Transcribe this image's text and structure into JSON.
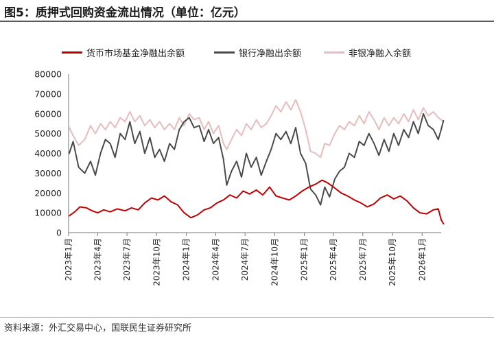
{
  "header": {
    "title": "图5：质押式回购资金流出情况（单位：亿元）"
  },
  "footer": {
    "source": "资料来源：外汇交易中心，国联民生证券研究所"
  },
  "chart_data": {
    "type": "line",
    "title": "",
    "xlabel": "",
    "ylabel": "",
    "ylim": [
      0,
      80000
    ],
    "yticks": [
      0,
      10000,
      20000,
      30000,
      40000,
      50000,
      60000,
      70000,
      80000
    ],
    "x_range": [
      "2023-01",
      "2026-03"
    ],
    "xticks": [
      {
        "date": "2023-01",
        "label": "2023年1月"
      },
      {
        "date": "2023-04",
        "label": "2023年4月"
      },
      {
        "date": "2023-07",
        "label": "2023年7月"
      },
      {
        "date": "2023-10",
        "label": "2023年10月"
      },
      {
        "date": "2024-01",
        "label": "2024年1月"
      },
      {
        "date": "2024-04",
        "label": "2024年4月"
      },
      {
        "date": "2024-07",
        "label": "2024年7月"
      },
      {
        "date": "2024-10",
        "label": "2024年10月"
      },
      {
        "date": "2025-01",
        "label": "2025年1月"
      },
      {
        "date": "2025-04",
        "label": "2025年4月"
      },
      {
        "date": "2025-07",
        "label": "2025年7月"
      },
      {
        "date": "2025-10",
        "label": "2025年10月"
      },
      {
        "date": "2026-01",
        "label": "2026年1月"
      }
    ],
    "grid": false,
    "legend_position": "top",
    "series": [
      {
        "name": "货币市场基金净融出余额",
        "color": "#c00000",
        "points": [
          [
            "2023-01-03",
            8500
          ],
          [
            "2023-01-20",
            10500
          ],
          [
            "2023-02-05",
            13000
          ],
          [
            "2023-02-25",
            12500
          ],
          [
            "2023-03-15",
            11000
          ],
          [
            "2023-04-01",
            10000
          ],
          [
            "2023-04-20",
            11500
          ],
          [
            "2023-05-10",
            10500
          ],
          [
            "2023-06-01",
            12000
          ],
          [
            "2023-06-25",
            11000
          ],
          [
            "2023-07-15",
            12500
          ],
          [
            "2023-08-05",
            11500
          ],
          [
            "2023-08-25",
            15000
          ],
          [
            "2023-09-15",
            17500
          ],
          [
            "2023-10-05",
            16500
          ],
          [
            "2023-10-25",
            18500
          ],
          [
            "2023-11-15",
            15500
          ],
          [
            "2023-12-05",
            14000
          ],
          [
            "2023-12-25",
            10000
          ],
          [
            "2024-01-15",
            7500
          ],
          [
            "2024-02-05",
            9000
          ],
          [
            "2024-02-25",
            11500
          ],
          [
            "2024-03-15",
            12500
          ],
          [
            "2024-04-05",
            15000
          ],
          [
            "2024-04-25",
            16500
          ],
          [
            "2024-05-15",
            19000
          ],
          [
            "2024-06-05",
            17500
          ],
          [
            "2024-06-25",
            21000
          ],
          [
            "2024-07-15",
            19500
          ],
          [
            "2024-08-05",
            21500
          ],
          [
            "2024-08-25",
            19000
          ],
          [
            "2024-09-15",
            23000
          ],
          [
            "2024-10-05",
            18500
          ],
          [
            "2024-10-25",
            17500
          ],
          [
            "2024-11-15",
            16500
          ],
          [
            "2024-12-05",
            18500
          ],
          [
            "2024-12-25",
            21000
          ],
          [
            "2025-01-15",
            23000
          ],
          [
            "2025-02-05",
            24500
          ],
          [
            "2025-02-25",
            26500
          ],
          [
            "2025-03-15",
            25000
          ],
          [
            "2025-04-05",
            22500
          ],
          [
            "2025-04-25",
            20000
          ],
          [
            "2025-05-15",
            18500
          ],
          [
            "2025-06-05",
            16500
          ],
          [
            "2025-06-25",
            15000
          ],
          [
            "2025-07-15",
            13000
          ],
          [
            "2025-08-05",
            14500
          ],
          [
            "2025-08-25",
            17500
          ],
          [
            "2025-09-15",
            19000
          ],
          [
            "2025-10-05",
            17000
          ],
          [
            "2025-10-25",
            18500
          ],
          [
            "2025-11-15",
            16000
          ],
          [
            "2025-12-05",
            12500
          ],
          [
            "2025-12-25",
            10000
          ],
          [
            "2026-01-15",
            9500
          ],
          [
            "2026-02-05",
            11500
          ],
          [
            "2026-02-20",
            12000
          ],
          [
            "2026-03-01",
            6500
          ],
          [
            "2026-03-08",
            4500
          ]
        ]
      },
      {
        "name": "银行净融出余额",
        "color": "#4a4a4a",
        "points": [
          [
            "2023-01-03",
            40000
          ],
          [
            "2023-01-15",
            46000
          ],
          [
            "2023-02-01",
            33000
          ],
          [
            "2023-02-20",
            30000
          ],
          [
            "2023-03-10",
            36000
          ],
          [
            "2023-03-25",
            29000
          ],
          [
            "2023-04-10",
            40000
          ],
          [
            "2023-04-25",
            47000
          ],
          [
            "2023-05-10",
            45000
          ],
          [
            "2023-05-25",
            38000
          ],
          [
            "2023-06-10",
            50000
          ],
          [
            "2023-06-25",
            47000
          ],
          [
            "2023-07-10",
            56000
          ],
          [
            "2023-07-25",
            45000
          ],
          [
            "2023-08-10",
            51000
          ],
          [
            "2023-08-25",
            40000
          ],
          [
            "2023-09-10",
            48000
          ],
          [
            "2023-09-25",
            38000
          ],
          [
            "2023-10-10",
            42000
          ],
          [
            "2023-10-25",
            36000
          ],
          [
            "2023-11-10",
            45000
          ],
          [
            "2023-11-25",
            42000
          ],
          [
            "2023-12-10",
            52000
          ],
          [
            "2023-12-25",
            56000
          ],
          [
            "2024-01-10",
            58000
          ],
          [
            "2024-01-25",
            53000
          ],
          [
            "2024-02-10",
            54000
          ],
          [
            "2024-02-25",
            46000
          ],
          [
            "2024-03-10",
            52000
          ],
          [
            "2024-03-25",
            45000
          ],
          [
            "2024-04-10",
            48000
          ],
          [
            "2024-04-25",
            37000
          ],
          [
            "2024-05-05",
            24000
          ],
          [
            "2024-05-20",
            31000
          ],
          [
            "2024-06-05",
            36000
          ],
          [
            "2024-06-20",
            28000
          ],
          [
            "2024-07-05",
            40000
          ],
          [
            "2024-07-20",
            33000
          ],
          [
            "2024-08-05",
            38000
          ],
          [
            "2024-08-20",
            29000
          ],
          [
            "2024-09-05",
            36000
          ],
          [
            "2024-09-20",
            42000
          ],
          [
            "2024-10-05",
            50000
          ],
          [
            "2024-10-20",
            47000
          ],
          [
            "2024-11-05",
            51000
          ],
          [
            "2024-11-20",
            45000
          ],
          [
            "2024-12-05",
            53000
          ],
          [
            "2024-12-20",
            40000
          ],
          [
            "2025-01-05",
            35000
          ],
          [
            "2025-01-20",
            22000
          ],
          [
            "2025-02-05",
            19000
          ],
          [
            "2025-02-20",
            14000
          ],
          [
            "2025-03-05",
            23000
          ],
          [
            "2025-03-20",
            18000
          ],
          [
            "2025-04-05",
            27000
          ],
          [
            "2025-04-20",
            31000
          ],
          [
            "2025-05-05",
            33000
          ],
          [
            "2025-05-20",
            40000
          ],
          [
            "2025-06-05",
            38000
          ],
          [
            "2025-06-20",
            46000
          ],
          [
            "2025-07-05",
            44000
          ],
          [
            "2025-07-20",
            50000
          ],
          [
            "2025-08-05",
            45000
          ],
          [
            "2025-08-20",
            39000
          ],
          [
            "2025-09-05",
            47000
          ],
          [
            "2025-09-20",
            41000
          ],
          [
            "2025-10-05",
            50000
          ],
          [
            "2025-10-20",
            44000
          ],
          [
            "2025-11-05",
            52000
          ],
          [
            "2025-11-20",
            48000
          ],
          [
            "2025-12-05",
            56000
          ],
          [
            "2025-12-20",
            50000
          ],
          [
            "2026-01-05",
            60000
          ],
          [
            "2026-01-20",
            54000
          ],
          [
            "2026-02-05",
            52000
          ],
          [
            "2026-02-20",
            47000
          ],
          [
            "2026-03-01",
            52000
          ],
          [
            "2026-03-08",
            56500
          ]
        ]
      },
      {
        "name": "非银净融入余额",
        "color": "#e8bcbc",
        "points": [
          [
            "2023-01-03",
            53000
          ],
          [
            "2023-01-15",
            49000
          ],
          [
            "2023-02-01",
            44000
          ],
          [
            "2023-02-20",
            47000
          ],
          [
            "2023-03-10",
            54000
          ],
          [
            "2023-03-25",
            50000
          ],
          [
            "2023-04-10",
            55000
          ],
          [
            "2023-04-25",
            52000
          ],
          [
            "2023-05-10",
            56000
          ],
          [
            "2023-05-25",
            53000
          ],
          [
            "2023-06-10",
            58000
          ],
          [
            "2023-06-25",
            56000
          ],
          [
            "2023-07-10",
            61000
          ],
          [
            "2023-07-25",
            56000
          ],
          [
            "2023-08-10",
            59000
          ],
          [
            "2023-08-25",
            54000
          ],
          [
            "2023-09-10",
            57000
          ],
          [
            "2023-09-25",
            53000
          ],
          [
            "2023-10-10",
            56000
          ],
          [
            "2023-10-25",
            52000
          ],
          [
            "2023-11-10",
            55000
          ],
          [
            "2023-11-25",
            52000
          ],
          [
            "2023-12-10",
            58000
          ],
          [
            "2023-12-25",
            54000
          ],
          [
            "2024-01-10",
            60000
          ],
          [
            "2024-01-25",
            57000
          ],
          [
            "2024-02-10",
            58000
          ],
          [
            "2024-02-25",
            52000
          ],
          [
            "2024-03-10",
            56000
          ],
          [
            "2024-03-25",
            50000
          ],
          [
            "2024-04-10",
            54000
          ],
          [
            "2024-04-25",
            45000
          ],
          [
            "2024-05-05",
            42000
          ],
          [
            "2024-05-20",
            47000
          ],
          [
            "2024-06-05",
            52000
          ],
          [
            "2024-06-20",
            49000
          ],
          [
            "2024-07-05",
            55000
          ],
          [
            "2024-07-20",
            52000
          ],
          [
            "2024-08-05",
            57000
          ],
          [
            "2024-08-20",
            53000
          ],
          [
            "2024-09-05",
            55000
          ],
          [
            "2024-09-20",
            59000
          ],
          [
            "2024-10-05",
            64000
          ],
          [
            "2024-10-20",
            61000
          ],
          [
            "2024-11-05",
            66000
          ],
          [
            "2024-11-20",
            62000
          ],
          [
            "2024-12-05",
            67000
          ],
          [
            "2024-12-20",
            61000
          ],
          [
            "2025-01-05",
            52000
          ],
          [
            "2025-01-20",
            41000
          ],
          [
            "2025-02-05",
            40000
          ],
          [
            "2025-02-20",
            38000
          ],
          [
            "2025-03-05",
            45000
          ],
          [
            "2025-03-20",
            44000
          ],
          [
            "2025-04-05",
            50000
          ],
          [
            "2025-04-20",
            54000
          ],
          [
            "2025-05-05",
            52000
          ],
          [
            "2025-05-20",
            56000
          ],
          [
            "2025-06-05",
            54000
          ],
          [
            "2025-06-20",
            59000
          ],
          [
            "2025-07-05",
            55000
          ],
          [
            "2025-07-20",
            61000
          ],
          [
            "2025-08-05",
            57000
          ],
          [
            "2025-08-20",
            52000
          ],
          [
            "2025-09-05",
            58000
          ],
          [
            "2025-09-20",
            54000
          ],
          [
            "2025-10-05",
            58000
          ],
          [
            "2025-10-20",
            55000
          ],
          [
            "2025-11-05",
            60000
          ],
          [
            "2025-11-20",
            56000
          ],
          [
            "2025-12-05",
            62000
          ],
          [
            "2025-12-20",
            57000
          ],
          [
            "2026-01-05",
            63000
          ],
          [
            "2026-01-20",
            59000
          ],
          [
            "2026-02-05",
            61000
          ],
          [
            "2026-02-20",
            58000
          ],
          [
            "2026-03-01",
            57000
          ],
          [
            "2026-03-08",
            56000
          ]
        ]
      }
    ]
  }
}
